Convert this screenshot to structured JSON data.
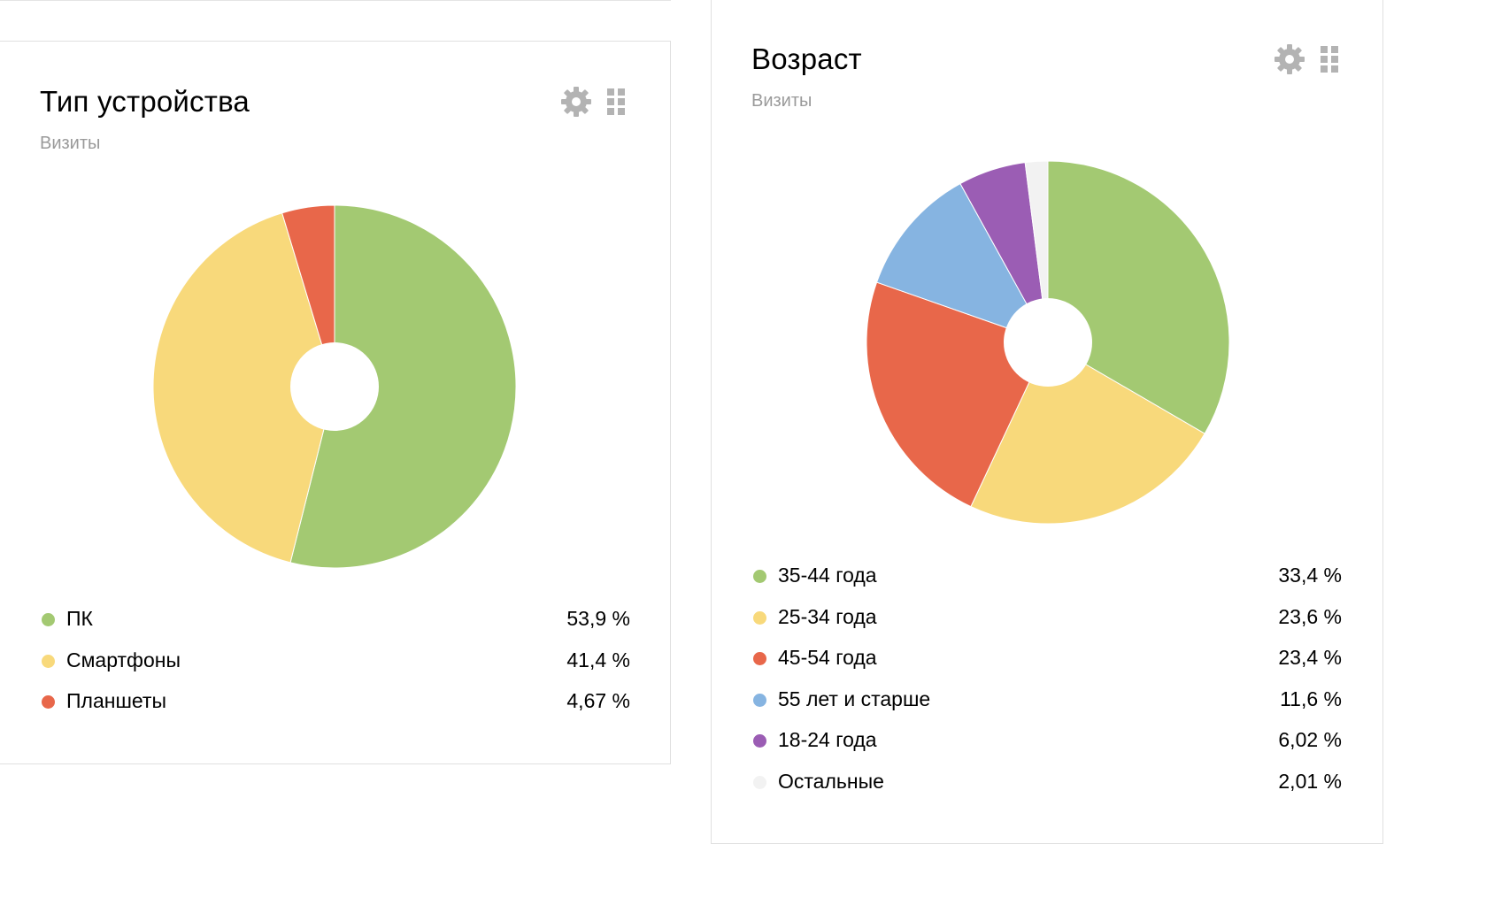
{
  "chart_data": [
    {
      "type": "pie",
      "title": "Тип устройства",
      "subtitle": "Визиты",
      "categories": [
        "ПК",
        "Смартфоны",
        "Планшеты"
      ],
      "values": [
        53.9,
        41.4,
        4.67
      ],
      "value_labels": [
        "53,9 %",
        "41,4 %",
        "4,67 %"
      ],
      "colors": [
        "#a3c972",
        "#f8d97b",
        "#e8674a"
      ],
      "legend_position": "bottom"
    },
    {
      "type": "pie",
      "title": "Возраст",
      "subtitle": "Визиты",
      "categories": [
        "35-44 года",
        "25-34 года",
        "45-54 года",
        "55 лет и старше",
        "18-24 года",
        "Остальные"
      ],
      "values": [
        33.4,
        23.6,
        23.4,
        11.6,
        6.02,
        2.01
      ],
      "value_labels": [
        "33,4 %",
        "23,6 %",
        "23,4 %",
        "11,6 %",
        "6,02 %",
        "2,01 %"
      ],
      "colors": [
        "#a3c972",
        "#f8d97b",
        "#e8674a",
        "#86b4e1",
        "#9b5db4",
        "#f2f2f2"
      ],
      "legend_position": "bottom"
    }
  ],
  "icons": {
    "settings": "gear-icon",
    "drag": "grid-handle-icon",
    "icon_color": "#b3b3b3"
  }
}
